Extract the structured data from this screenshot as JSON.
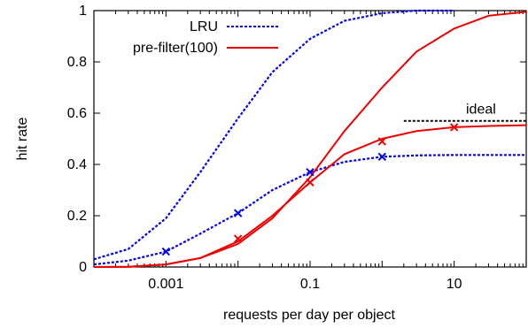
{
  "chart_data": {
    "type": "line",
    "title": "",
    "xlabel": "requests per day per object",
    "ylabel": "hit rate",
    "xscale": "log",
    "xlim": [
      0.0001,
      100
    ],
    "ylim": [
      0,
      1
    ],
    "xticks": [
      {
        "value": 0.001,
        "label": "0.001"
      },
      {
        "value": 0.1,
        "label": "0.1"
      },
      {
        "value": 10,
        "label": "10"
      }
    ],
    "yticks": [
      {
        "value": 0,
        "label": "0"
      },
      {
        "value": 0.2,
        "label": "0.2"
      },
      {
        "value": 0.4,
        "label": "0.4"
      },
      {
        "value": 0.6,
        "label": "0.6"
      },
      {
        "value": 0.8,
        "label": "0.8"
      },
      {
        "value": 1,
        "label": "1"
      }
    ],
    "grid": false,
    "legend_position": "top-left",
    "series": [
      {
        "name": "LRU",
        "color": "#0000ee",
        "dash": "dotted",
        "curves": [
          {
            "x": [
              0.0001,
              0.0003,
              0.001,
              0.003,
              0.01,
              0.03,
              0.1,
              0.3,
              1,
              3,
              10
            ],
            "y": [
              0.03,
              0.07,
              0.19,
              0.37,
              0.58,
              0.76,
              0.89,
              0.96,
              0.99,
              1.0,
              1.0
            ]
          },
          {
            "x": [
              0.0001,
              0.0003,
              0.001,
              0.003,
              0.01,
              0.03,
              0.1,
              0.3,
              1,
              3,
              10,
              30,
              100
            ],
            "y": [
              0.01,
              0.025,
              0.06,
              0.13,
              0.21,
              0.3,
              0.37,
              0.41,
              0.43,
              0.435,
              0.437,
              0.437,
              0.437
            ]
          }
        ],
        "markers": {
          "x": [
            0.001,
            0.01,
            0.1,
            1
          ],
          "y": [
            0.06,
            0.21,
            0.37,
            0.43
          ]
        }
      },
      {
        "name": "pre-filter(100)",
        "color": "#ee0000",
        "dash": "solid",
        "curves": [
          {
            "x": [
              0.0001,
              0.0003,
              0.001,
              0.003,
              0.01,
              0.03,
              0.1,
              0.3,
              1,
              3,
              10,
              30,
              100
            ],
            "y": [
              0.0,
              0.001,
              0.01,
              0.035,
              0.09,
              0.19,
              0.35,
              0.53,
              0.7,
              0.84,
              0.93,
              0.98,
              0.995
            ]
          },
          {
            "x": [
              0.0001,
              0.0003,
              0.001,
              0.003,
              0.01,
              0.03,
              0.1,
              0.3,
              1,
              3,
              10,
              30,
              100
            ],
            "y": [
              0.0,
              0.001,
              0.01,
              0.035,
              0.1,
              0.2,
              0.33,
              0.44,
              0.5,
              0.53,
              0.545,
              0.55,
              0.553
            ]
          }
        ],
        "markers": {
          "x": [
            0.01,
            0.1,
            1,
            10
          ],
          "y": [
            0.11,
            0.33,
            0.49,
            0.545
          ]
        }
      }
    ],
    "reference_lines": [
      {
        "label": "ideal",
        "y": 0.57,
        "x_start": 2,
        "x_end": 100,
        "color": "#000000",
        "dash": "dotted"
      }
    ]
  }
}
